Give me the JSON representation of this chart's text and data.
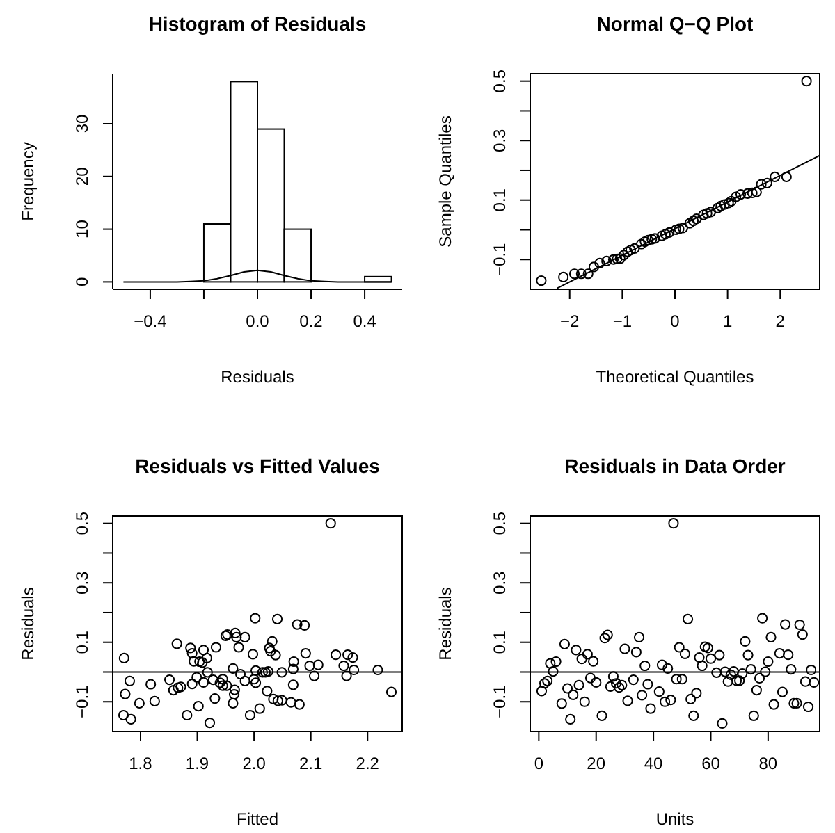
{
  "chart_data": [
    {
      "type": "histogram",
      "title": "Histogram of Residuals",
      "xlabel": "Residuals",
      "ylabel": "Frequency",
      "xlim": [
        -0.54,
        0.54
      ],
      "xticks": [
        -0.4,
        {
          "value": -0.2,
          "label": null
        },
        {
          "value": 0,
          "label": "0.0"
        },
        0.2,
        0.4
      ],
      "ylim": [
        -1.4,
        39.5
      ],
      "yticks": [
        0,
        10,
        20,
        30
      ],
      "bins": [
        -0.2,
        -0.1,
        0,
        0.1,
        0.2,
        0.3,
        0.4,
        0.5
      ],
      "values": [
        11,
        38,
        29,
        10,
        0,
        0,
        1
      ],
      "color": "#ffffff",
      "series": [
        {
          "type": "line",
          "color": "#000000",
          "x": [
            -0.5,
            -0.45,
            -0.4,
            -0.35,
            -0.3,
            -0.25,
            -0.2,
            -0.15,
            -0.1,
            -0.05,
            0,
            0.05,
            0.1,
            0.15,
            0.2,
            0.25,
            0.3,
            0.35,
            0.4,
            0.45,
            0.5
          ],
          "values": [
            0,
            0,
            0,
            0,
            0,
            0.1,
            0.2,
            0.6,
            1.2,
            1.9,
            2.2,
            1.9,
            1.2,
            0.6,
            0.2,
            0.1,
            0,
            0,
            0,
            0,
            0
          ]
        }
      ]
    },
    {
      "type": "scatter",
      "title": "Normal Q−Q Plot",
      "xlabel": "Theoretical Quantiles",
      "ylabel": "Sample Quantiles",
      "xlim": [
        -2.75,
        2.75
      ],
      "xticks": [
        -2,
        -1,
        0,
        1,
        2
      ],
      "ylim": [
        -0.2,
        0.525
      ],
      "yticks": [
        -0.1,
        {
          "value": 0,
          "label": null
        },
        0.1,
        {
          "value": 0.2,
          "label": null
        },
        0.3,
        {
          "value": 0.4,
          "label": null
        },
        0.5
      ],
      "series": [
        {
          "type": "scatter",
          "marker": "circle",
          "color": "#000000",
          "x": [
            -2.54,
            -2.12,
            -1.91,
            -1.78,
            -1.65,
            -1.54,
            -1.43,
            -1.3,
            -1.17,
            -1.1,
            -1.04,
            -0.97,
            -0.9,
            -0.84,
            -0.77,
            -0.64,
            -0.57,
            -0.51,
            -0.44,
            -0.38,
            -0.25,
            -0.18,
            -0.11,
            0.02,
            0.08,
            0.15,
            0.28,
            0.35,
            0.41,
            0.54,
            0.61,
            0.68,
            0.81,
            0.87,
            0.94,
            1.02,
            1.07,
            1.16,
            1.25,
            1.38,
            1.47,
            1.55,
            1.64,
            1.75,
            1.9,
            2.12,
            2.5
          ],
          "values": [
            -0.171,
            -0.159,
            -0.148,
            -0.148,
            -0.148,
            -0.125,
            -0.112,
            -0.105,
            -0.1,
            -0.098,
            -0.097,
            -0.085,
            -0.074,
            -0.068,
            -0.063,
            -0.048,
            -0.04,
            -0.035,
            -0.032,
            -0.029,
            -0.02,
            -0.015,
            -0.009,
            0,
            0.003,
            0.006,
            0.022,
            0.03,
            0.037,
            0.05,
            0.055,
            0.06,
            0.073,
            0.08,
            0.085,
            0.09,
            0.096,
            0.111,
            0.119,
            0.122,
            0.124,
            0.127,
            0.153,
            0.157,
            0.178,
            0.178,
            0.5
          ]
        },
        {
          "type": "line",
          "color": "#000000",
          "x": [
            -2.24,
            2.75
          ],
          "values": [
            -0.197,
            0.25
          ]
        }
      ]
    },
    {
      "type": "scatter",
      "title": "Residuals vs Fitted Values",
      "xlabel": "Fitted",
      "ylabel": "Residuals",
      "marker": "circle",
      "xlim": [
        1.751,
        2.261
      ],
      "xticks": [
        1.8,
        1.9,
        {
          "value": 2,
          "label": "2.0"
        },
        2.1,
        2.2
      ],
      "ylim": [
        -0.2,
        0.525
      ],
      "yticks": [
        -0.1,
        {
          "value": 0,
          "label": null
        },
        0.1,
        {
          "value": 0.2,
          "label": null
        },
        0.3,
        {
          "value": 0.4,
          "label": null
        },
        0.5
      ],
      "ref_lines": [
        {
          "axis": "y",
          "value": 0
        }
      ],
      "series": [
        {
          "type": "scatter",
          "color": "#000000",
          "x": [
            1.771,
            1.77,
            1.773,
            1.781,
            1.783,
            1.798,
            1.818,
            1.825,
            1.851,
            1.858,
            1.864,
            1.866,
            1.871,
            1.882,
            1.888,
            1.891,
            1.891,
            1.894,
            1.899,
            1.902,
            1.904,
            1.909,
            1.911,
            1.911,
            1.917,
            1.918,
            1.922,
            1.928,
            1.933,
            1.931,
            1.94,
            1.945,
            1.945,
            1.95,
            1.953,
            1.952,
            1.963,
            1.965,
            1.966,
            1.963,
            1.967,
            1.969,
            1.973,
            1.976,
            1.984,
            1.984,
            1.993,
            1.998,
            2.0,
            2.002,
            2.003,
            2.003,
            2.01,
            2.015,
            2.02,
            2.023,
            2.025,
            2.027,
            2.029,
            2.032,
            2.034,
            2.038,
            2.041,
            2.042,
            2.049,
            2.049,
            2.065,
            2.069,
            2.069,
            2.07,
            2.076,
            2.08,
            2.089,
            2.091,
            2.098,
            2.106,
            2.113,
            2.135,
            2.144,
            2.158,
            2.163,
            2.165,
            2.174,
            2.176,
            2.218,
            2.242
          ],
          "values": [
            0.047,
            -0.145,
            -0.074,
            -0.03,
            -0.159,
            -0.105,
            -0.041,
            -0.098,
            -0.026,
            -0.061,
            0.095,
            -0.053,
            -0.05,
            -0.145,
            0.081,
            0.063,
            -0.04,
            0.036,
            -0.018,
            -0.115,
            0.035,
            0.032,
            0.074,
            -0.035,
            0.047,
            -0.001,
            -0.171,
            -0.026,
            0.083,
            -0.089,
            -0.036,
            -0.024,
            -0.046,
            0.122,
            0.126,
            -0.046,
            -0.105,
            -0.075,
            -0.06,
            0.012,
            0.131,
            0.117,
            0.083,
            -0.007,
            0.117,
            -0.03,
            -0.145,
            0.06,
            -0.024,
            0.181,
            -0.036,
            0.005,
            -0.123,
            -0.001,
            -0.001,
            -0.064,
            0.002,
            0.081,
            0.07,
            0.103,
            -0.091,
            0.057,
            0.178,
            -0.097,
            -0.001,
            -0.095,
            -0.102,
            0.01,
            -0.043,
            0.035,
            0.16,
            -0.109,
            0.157,
            0.063,
            0.021,
            -0.013,
            0.024,
            0.5,
            0.058,
            0.021,
            -0.013,
            0.058,
            0.049,
            0.007,
            0.007,
            -0.067
          ]
        }
      ]
    },
    {
      "type": "scatter",
      "title": "Residuals in Data Order",
      "xlabel": "Units",
      "ylabel": "Residuals",
      "marker": "circle",
      "xlim": [
        -3,
        98
      ],
      "xticks": [
        0,
        20,
        40,
        60,
        80
      ],
      "ylim": [
        -0.2,
        0.525
      ],
      "yticks": [
        -0.1,
        {
          "value": 0,
          "label": null
        },
        0.1,
        {
          "value": 0.2,
          "label": null
        },
        0.3,
        {
          "value": 0.4,
          "label": null
        },
        0.5
      ],
      "ref_lines": [
        {
          "axis": "y",
          "value": 0
        }
      ],
      "series": [
        {
          "type": "scatter",
          "color": "#000000",
          "x": [
            1,
            2,
            3,
            4,
            5,
            6,
            8,
            9,
            10,
            11,
            12,
            13,
            14,
            15,
            16,
            17,
            18,
            19,
            20,
            22,
            23,
            24,
            25,
            26,
            27,
            28,
            29,
            30,
            31,
            33,
            34,
            35,
            36,
            37,
            38,
            39,
            42,
            43,
            44,
            45,
            46,
            47,
            48,
            49,
            50,
            51,
            52,
            53,
            54,
            55,
            56,
            57,
            58,
            59,
            60,
            62,
            63,
            64,
            65,
            66,
            67,
            68,
            69,
            70,
            71,
            72,
            73,
            74,
            75,
            76,
            77,
            78,
            79,
            80,
            81,
            82,
            84,
            85,
            86,
            87,
            88,
            89,
            90,
            91,
            92,
            93,
            94,
            95,
            96
          ],
          "values": [
            -0.064,
            -0.038,
            -0.03,
            0.029,
            0.002,
            0.035,
            -0.106,
            0.094,
            -0.055,
            -0.159,
            -0.077,
            0.074,
            -0.044,
            0.044,
            -0.1,
            0.06,
            -0.02,
            0.036,
            -0.035,
            -0.147,
            0.114,
            0.125,
            -0.049,
            -0.015,
            -0.038,
            -0.052,
            -0.044,
            0.078,
            -0.097,
            -0.026,
            0.067,
            0.117,
            -0.078,
            0.021,
            -0.041,
            -0.123,
            -0.066,
            0.024,
            -0.1,
            0.012,
            -0.094,
            0.5,
            -0.024,
            0.083,
            -0.024,
            0.061,
            0.178,
            -0.091,
            -0.147,
            -0.071,
            0.049,
            0.021,
            0.085,
            0.081,
            0.045,
            -0.002,
            0.057,
            -0.173,
            0.001,
            -0.032,
            -0.009,
            0.002,
            -0.029,
            -0.029,
            -0.005,
            0.103,
            0.057,
            0.009,
            -0.147,
            -0.061,
            -0.021,
            0.181,
            0.001,
            0.035,
            0.117,
            -0.109,
            0.063,
            -0.067,
            0.16,
            0.058,
            0.009,
            -0.105,
            -0.105,
            0.159,
            0.126,
            -0.032,
            -0.117,
            0.007,
            -0.035
          ]
        }
      ]
    }
  ]
}
